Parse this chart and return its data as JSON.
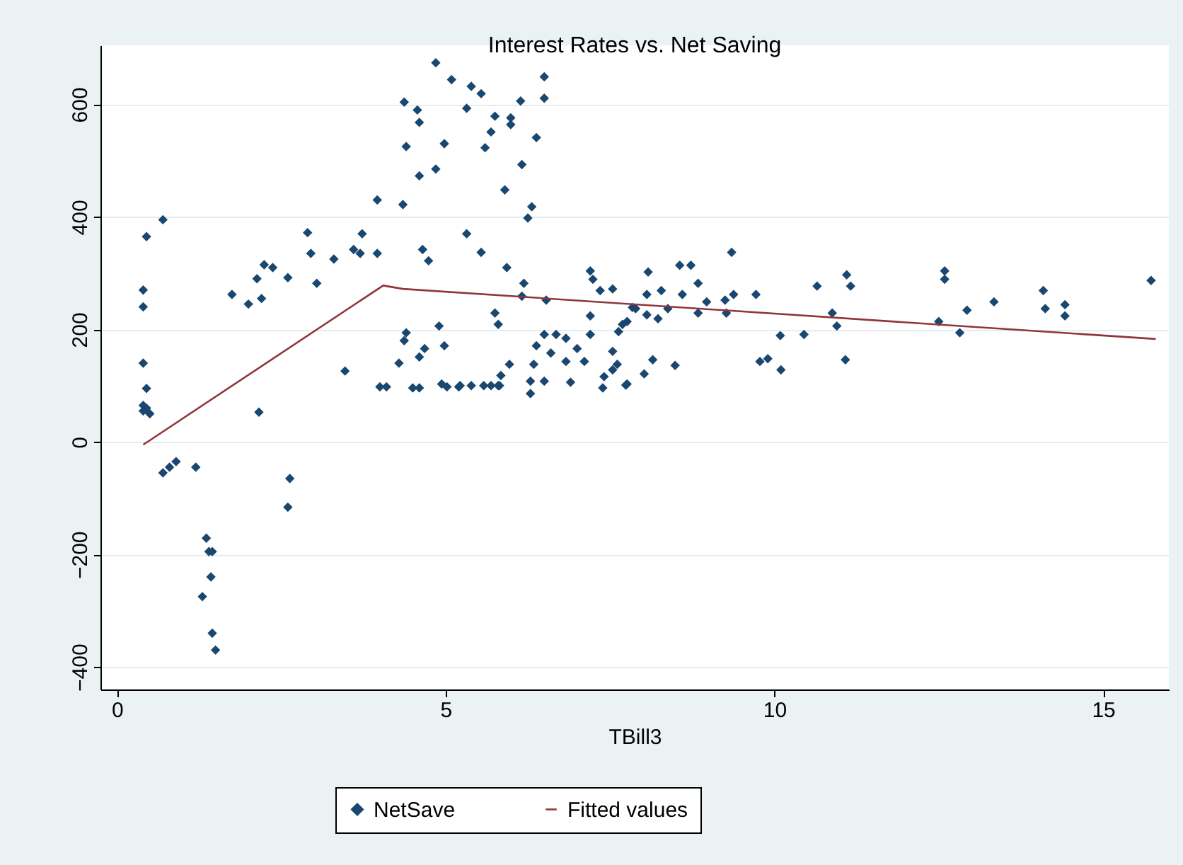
{
  "chart_data": {
    "type": "scatter",
    "title": "Interest Rates vs. Net Saving",
    "xlabel": "TBill3",
    "xlim": [
      -0.25,
      16
    ],
    "ylim": [
      -440,
      705
    ],
    "xticks": [
      0,
      5,
      10,
      15
    ],
    "yticks": [
      -400,
      -200,
      0,
      200,
      400,
      600
    ],
    "grid": "y",
    "legend": "bottom",
    "series": [
      {
        "name": "NetSave",
        "color": "#1a476f",
        "marker": "diamond",
        "x": [
          0.4,
          0.4,
          0.45,
          0.4,
          0.45,
          0.4,
          0.4,
          0.5,
          0.45,
          0.7,
          0.7,
          0.8,
          0.9,
          1.2,
          1.36,
          1.4,
          1.45,
          1.43,
          1.3,
          1.45,
          1.5,
          1.75,
          2.0,
          2.2,
          2.13,
          2.24,
          2.37,
          2.6,
          2.16,
          2.63,
          2.6,
          2.9,
          2.95,
          3.04,
          3.3,
          3.47,
          3.6,
          3.7,
          3.73,
          3.96,
          3.96,
          4.0,
          4.1,
          4.35,
          4.37,
          4.4,
          4.4,
          4.37,
          4.29,
          4.5,
          4.6,
          4.57,
          4.6,
          4.6,
          4.65,
          4.74,
          4.6,
          4.68,
          4.85,
          4.85,
          4.9,
          4.98,
          4.98,
          4.94,
          5.02,
          5.09,
          5.2,
          5.32,
          5.32,
          5.39,
          5.54,
          5.75,
          5.69,
          5.6,
          5.99,
          5.99,
          6.14,
          6.5,
          6.5,
          6.38,
          6.16,
          5.9,
          6.31,
          6.25,
          5.54,
          5.93,
          6.19,
          6.16,
          6.53,
          5.75,
          5.8,
          5.97,
          5.84,
          5.22,
          5.39,
          5.58,
          5.69,
          5.8,
          5.82,
          6.29,
          6.29,
          6.34,
          6.38,
          6.5,
          6.5,
          6.6,
          6.68,
          6.83,
          6.83,
          6.9,
          7.0,
          7.11,
          7.2,
          7.2,
          7.2,
          7.24,
          7.35,
          7.54,
          7.39,
          7.41,
          7.54,
          7.54,
          7.61,
          7.63,
          7.69,
          7.76,
          7.74,
          7.76,
          7.84,
          7.89,
          8.02,
          8.08,
          8.06,
          8.06,
          8.15,
          8.28,
          8.23,
          8.38,
          8.49,
          8.56,
          8.73,
          8.6,
          8.84,
          8.84,
          8.97,
          9.25,
          9.27,
          9.35,
          9.38,
          9.72,
          9.78,
          9.9,
          10.09,
          10.1,
          10.45,
          10.65,
          10.88,
          10.95,
          11.08,
          11.1,
          11.16,
          12.5,
          12.59,
          12.59,
          12.82,
          12.93,
          13.34,
          14.09,
          14.12,
          14.42,
          14.42,
          15.73
        ],
        "values": [
          270,
          240,
          365,
          140,
          95,
          65,
          55,
          50,
          60,
          395,
          -55,
          -45,
          -35,
          -45,
          -171,
          -195,
          -195,
          -240,
          -275,
          -340,
          -370,
          262,
          245,
          255,
          290,
          315,
          310,
          292,
          53,
          -65,
          -116,
          372,
          335,
          282,
          325,
          126,
          342,
          335,
          370,
          335,
          430,
          98,
          98,
          422,
          604,
          525,
          194,
          180,
          140,
          96,
          96,
          590,
          568,
          473,
          342,
          322,
          151,
          166,
          674,
          485,
          206,
          171,
          530,
          103,
          98,
          644,
          98,
          370,
          593,
          632,
          619,
          579,
          551,
          523,
          576,
          564,
          606,
          649,
          611,
          541,
          493,
          448,
          418,
          398,
          337,
          310,
          282,
          259,
          252,
          229,
          209,
          138,
          118,
          100,
          100,
          100,
          100,
          100,
          100,
          108,
          86,
          138,
          171,
          108,
          191,
          158,
          191,
          184,
          143,
          106,
          166,
          143,
          224,
          191,
          304,
          289,
          269,
          272,
          96,
          116,
          161,
          128,
          138,
          196,
          209,
          214,
          101,
          103,
          239,
          237,
          121,
          302,
          262,
          226,
          146,
          269,
          219,
          237,
          136,
          314,
          314,
          262,
          282,
          229,
          249,
          252,
          229,
          337,
          262,
          262,
          143,
          148,
          189,
          128,
          191,
          277,
          229,
          206,
          146,
          297,
          277,
          214,
          304,
          289,
          194,
          234,
          249,
          269,
          237,
          244,
          224,
          287
        ]
      },
      {
        "name": "Fitted values",
        "type": "line",
        "marker": "none",
        "color": "#90353b",
        "x": [
          0.4,
          4.05,
          4.35,
          15.8
        ],
        "values": [
          -5,
          278,
          272,
          183
        ]
      }
    ]
  }
}
